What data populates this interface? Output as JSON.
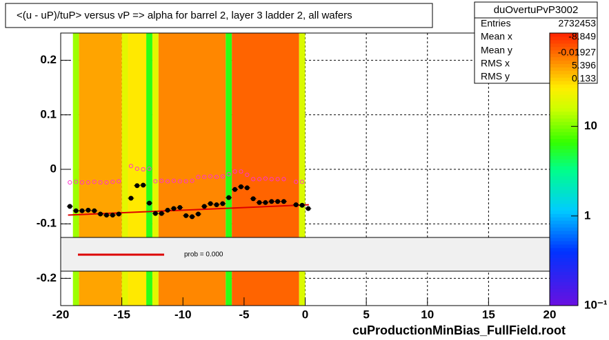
{
  "chart_data": {
    "type": "heatmap-profile",
    "title": "<(u - uP)/tuP> versus   vP => alpha for barrel 2, layer 3 ladder 2, all wafers",
    "xlabel": "cuProductionMinBias_FullField.root",
    "xlim": [
      -20,
      20
    ],
    "ylim": [
      -0.25,
      0.25
    ],
    "xticks": [
      -20,
      -15,
      -10,
      -5,
      0,
      5,
      10,
      15,
      20
    ],
    "yticks": [
      -0.2,
      -0.1,
      0,
      0.1,
      0.2
    ],
    "grid": true,
    "zlog": true,
    "zlim": [
      0.1,
      110
    ],
    "zticks": [
      {
        "value": 0.1,
        "label": "10⁻¹"
      },
      1,
      10
    ],
    "heatmap": {
      "x_edges": [
        -19.0,
        -18.5,
        -15.0,
        -14.5,
        -13.0,
        -12.5,
        -12.0,
        -6.5,
        -6.0,
        -0.5,
        0.0
      ],
      "levels": [
        12,
        45,
        20,
        28,
        6,
        20,
        55,
        6,
        70,
        18
      ]
    },
    "series": [
      {
        "color": "#000000",
        "marker": "filled",
        "x": [
          -19.25,
          -18.75,
          -18.25,
          -17.75,
          -17.25,
          -16.75,
          -16.25,
          -15.75,
          -15.25,
          -14.25,
          -13.75,
          -13.25,
          -12.75,
          -12.25,
          -11.75,
          -11.25,
          -10.75,
          -10.25,
          -9.75,
          -9.25,
          -8.75,
          -8.25,
          -7.75,
          -7.25,
          -6.75,
          -6.25,
          -5.75,
          -5.25,
          -4.75,
          -4.25,
          -3.75,
          -3.25,
          -2.75,
          -2.25,
          -1.75,
          -0.75,
          -0.25,
          0.25
        ],
        "values": [
          -0.068,
          -0.076,
          -0.076,
          -0.075,
          -0.076,
          -0.082,
          -0.084,
          -0.084,
          -0.082,
          -0.053,
          -0.03,
          -0.029,
          -0.062,
          -0.081,
          -0.081,
          -0.075,
          -0.072,
          -0.07,
          -0.085,
          -0.087,
          -0.082,
          -0.068,
          -0.063,
          -0.065,
          -0.063,
          -0.052,
          -0.037,
          -0.032,
          -0.034,
          -0.054,
          -0.061,
          -0.061,
          -0.059,
          -0.059,
          -0.059,
          -0.065,
          -0.066,
          -0.072
        ]
      },
      {
        "color": "#ff33cc",
        "marker": "open",
        "x": [
          -19.25,
          -18.75,
          -18.25,
          -17.75,
          -17.25,
          -16.75,
          -16.25,
          -15.75,
          -15.25,
          -14.25,
          -13.75,
          -13.25,
          -12.75,
          -12.25,
          -11.75,
          -11.25,
          -10.75,
          -10.25,
          -9.75,
          -9.25,
          -8.75,
          -8.25,
          -7.75,
          -7.25,
          -6.75,
          -6.25,
          -5.75,
          -5.25,
          -4.75,
          -4.25,
          -3.75,
          -3.25,
          -2.75,
          -2.25,
          -1.75,
          -0.75,
          -0.25,
          0.25
        ],
        "values": [
          -0.024,
          -0.023,
          -0.024,
          -0.024,
          -0.023,
          -0.024,
          -0.024,
          -0.023,
          -0.022,
          0.006,
          0.001,
          0.0,
          0.001,
          -0.022,
          -0.021,
          -0.022,
          -0.021,
          -0.022,
          -0.022,
          -0.021,
          -0.014,
          -0.014,
          -0.013,
          -0.014,
          -0.013,
          -0.009,
          -0.004,
          -0.004,
          -0.01,
          -0.018,
          -0.018,
          -0.017,
          -0.018,
          -0.018,
          -0.018,
          -0.023,
          -0.023,
          null
        ]
      }
    ],
    "fit": {
      "color": "#dd0000",
      "x": [
        -19.4,
        0.3
      ],
      "values": [
        -0.084,
        -0.065
      ]
    },
    "fit_label": "prob = 0.000",
    "stats": {
      "name": "duOvertuPvP3002",
      "rows": [
        [
          "Entries",
          2732453
        ],
        [
          "Mean x",
          -8.849
        ],
        [
          "Mean y",
          -0.01927
        ],
        [
          "RMS x",
          5.396
        ],
        [
          "RMS y",
          0.133
        ]
      ]
    }
  }
}
